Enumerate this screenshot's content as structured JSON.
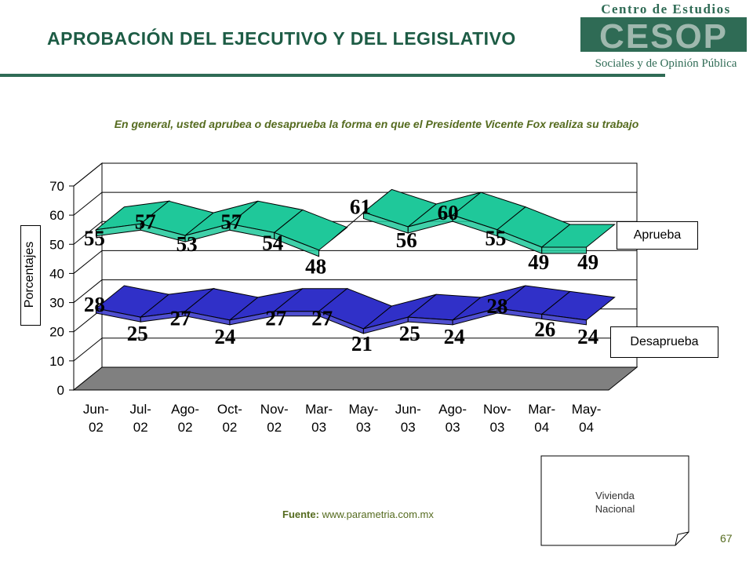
{
  "slide": {
    "title": "APROBACIÓN DEL EJECUTIVO Y DEL LEGISLATIVO",
    "question": "En general, usted aprubea o desaprueba la forma en que el Presidente Vicente Fox realiza su trabajo",
    "source_label": "Fuente:",
    "source_url": "www.parametria.com.mx",
    "note_line1": "Vivienda",
    "note_line2": "Nacional",
    "page_number": "67"
  },
  "logo": {
    "top_text": "Centro de Estudios",
    "mark_text": "CESOP",
    "bottom_text": "Sociales y de Opinión Pública",
    "color": "#2f6b55"
  },
  "chart_data": {
    "type": "line",
    "title": "",
    "xlabel": "",
    "ylabel": "Porcentajes",
    "ylim": [
      0,
      70
    ],
    "yticks": [
      0,
      10,
      20,
      30,
      40,
      50,
      60,
      70
    ],
    "grid": true,
    "categories": [
      "Jun-02",
      "Jul-02",
      "Ago-02",
      "Oct-02",
      "Nov-02",
      "Mar-03",
      "May-03",
      "Jun-03",
      "Ago-03",
      "Nov-03",
      "Mar-04",
      "May-04"
    ],
    "category_lines": [
      [
        "Jun-",
        "02"
      ],
      [
        "Jul-",
        "02"
      ],
      [
        "Ago-",
        "02"
      ],
      [
        "Oct-",
        "02"
      ],
      [
        "Nov-",
        "02"
      ],
      [
        "Mar-",
        "03"
      ],
      [
        "May-",
        "03"
      ],
      [
        "Jun-",
        "03"
      ],
      [
        "Ago-",
        "03"
      ],
      [
        "Nov-",
        "03"
      ],
      [
        "Mar-",
        "04"
      ],
      [
        "May-",
        "04"
      ]
    ],
    "series": [
      {
        "name": "Aprueba",
        "values": [
          55,
          57,
          53,
          57,
          54,
          48,
          61,
          56,
          60,
          55,
          49,
          49
        ],
        "color": "#1fc89a"
      },
      {
        "name": "Desaprueba",
        "values": [
          28,
          25,
          27,
          24,
          27,
          27,
          21,
          25,
          24,
          28,
          26,
          24
        ],
        "color": "#3030c8"
      }
    ],
    "floor_color": "#808080",
    "legend_placement": "right"
  }
}
